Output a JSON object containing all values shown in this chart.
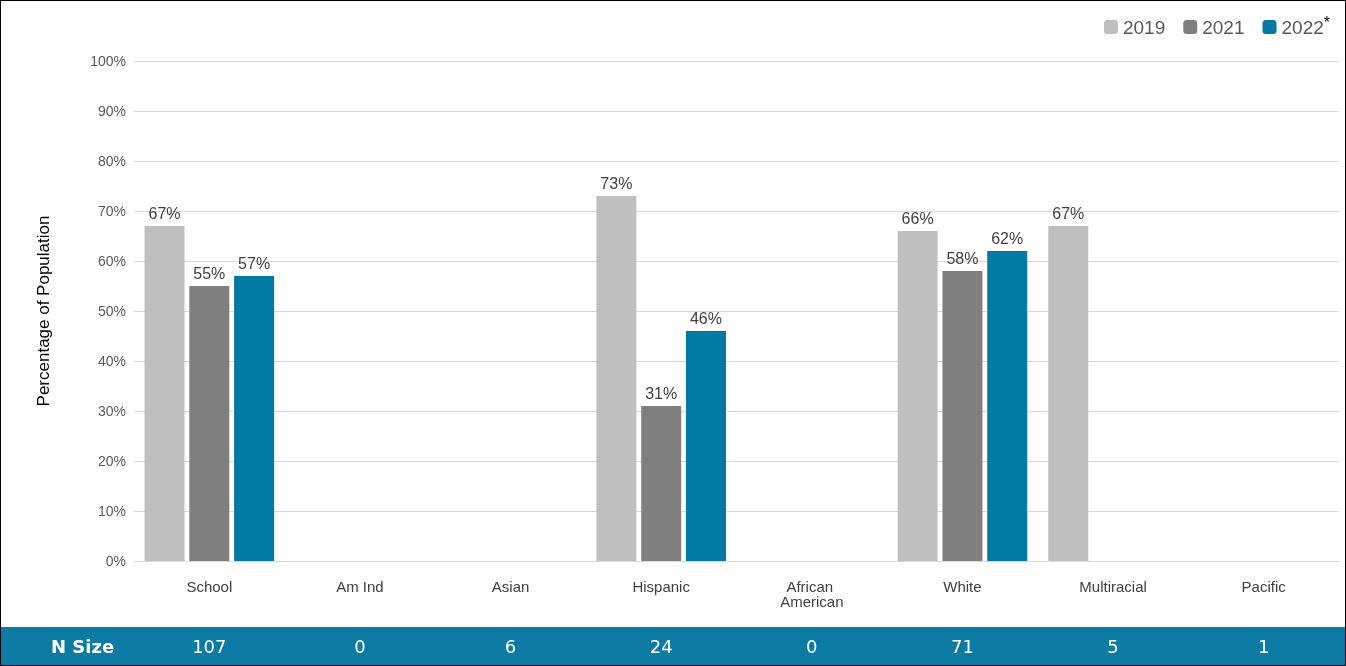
{
  "chart_data": {
    "type": "bar",
    "ylabel": "Percentage of Population",
    "categories": [
      "School",
      "Am Ind",
      "Asian",
      "Hispanic",
      "African American",
      "White",
      "Multiracial",
      "Pacific"
    ],
    "series": [
      {
        "name": "2019",
        "color": "#bfbfbf",
        "values": [
          67,
          null,
          null,
          73,
          null,
          66,
          67,
          null
        ],
        "value_labels": [
          "67%",
          null,
          null,
          "73%",
          null,
          "66%",
          "67%",
          null
        ]
      },
      {
        "name": "2021",
        "color": "#7f7f7f",
        "values": [
          55,
          null,
          null,
          31,
          null,
          58,
          null,
          null
        ],
        "value_labels": [
          "55%",
          null,
          null,
          "31%",
          null,
          "58%",
          null,
          null
        ]
      },
      {
        "name": "2022$^{*}$",
        "color": "#0079a3",
        "values": [
          57,
          null,
          null,
          46,
          null,
          62,
          null,
          null
        ],
        "value_labels": [
          "57%",
          null,
          null,
          "46%",
          null,
          "62%",
          null,
          null
        ]
      }
    ],
    "ylim": [
      0,
      100
    ],
    "yticks": [
      {
        "value": 0,
        "label": "0%"
      },
      {
        "value": 10,
        "label": "10%"
      },
      {
        "value": 20,
        "label": "20%"
      },
      {
        "value": 30,
        "label": "30%"
      },
      {
        "value": 40,
        "label": "40%"
      },
      {
        "value": 50,
        "label": "50%"
      },
      {
        "value": 60,
        "label": "60%"
      },
      {
        "value": 70,
        "label": "70%"
      },
      {
        "value": 80,
        "label": "80%"
      },
      {
        "value": 90,
        "label": "90%"
      },
      {
        "value": 100,
        "label": "100%"
      }
    ],
    "grid": "y",
    "legend": "top right",
    "annotations": [
      "N Size",
      "107",
      "0",
      "6",
      "24",
      "0",
      "71",
      "5",
      "1"
    ]
  }
}
